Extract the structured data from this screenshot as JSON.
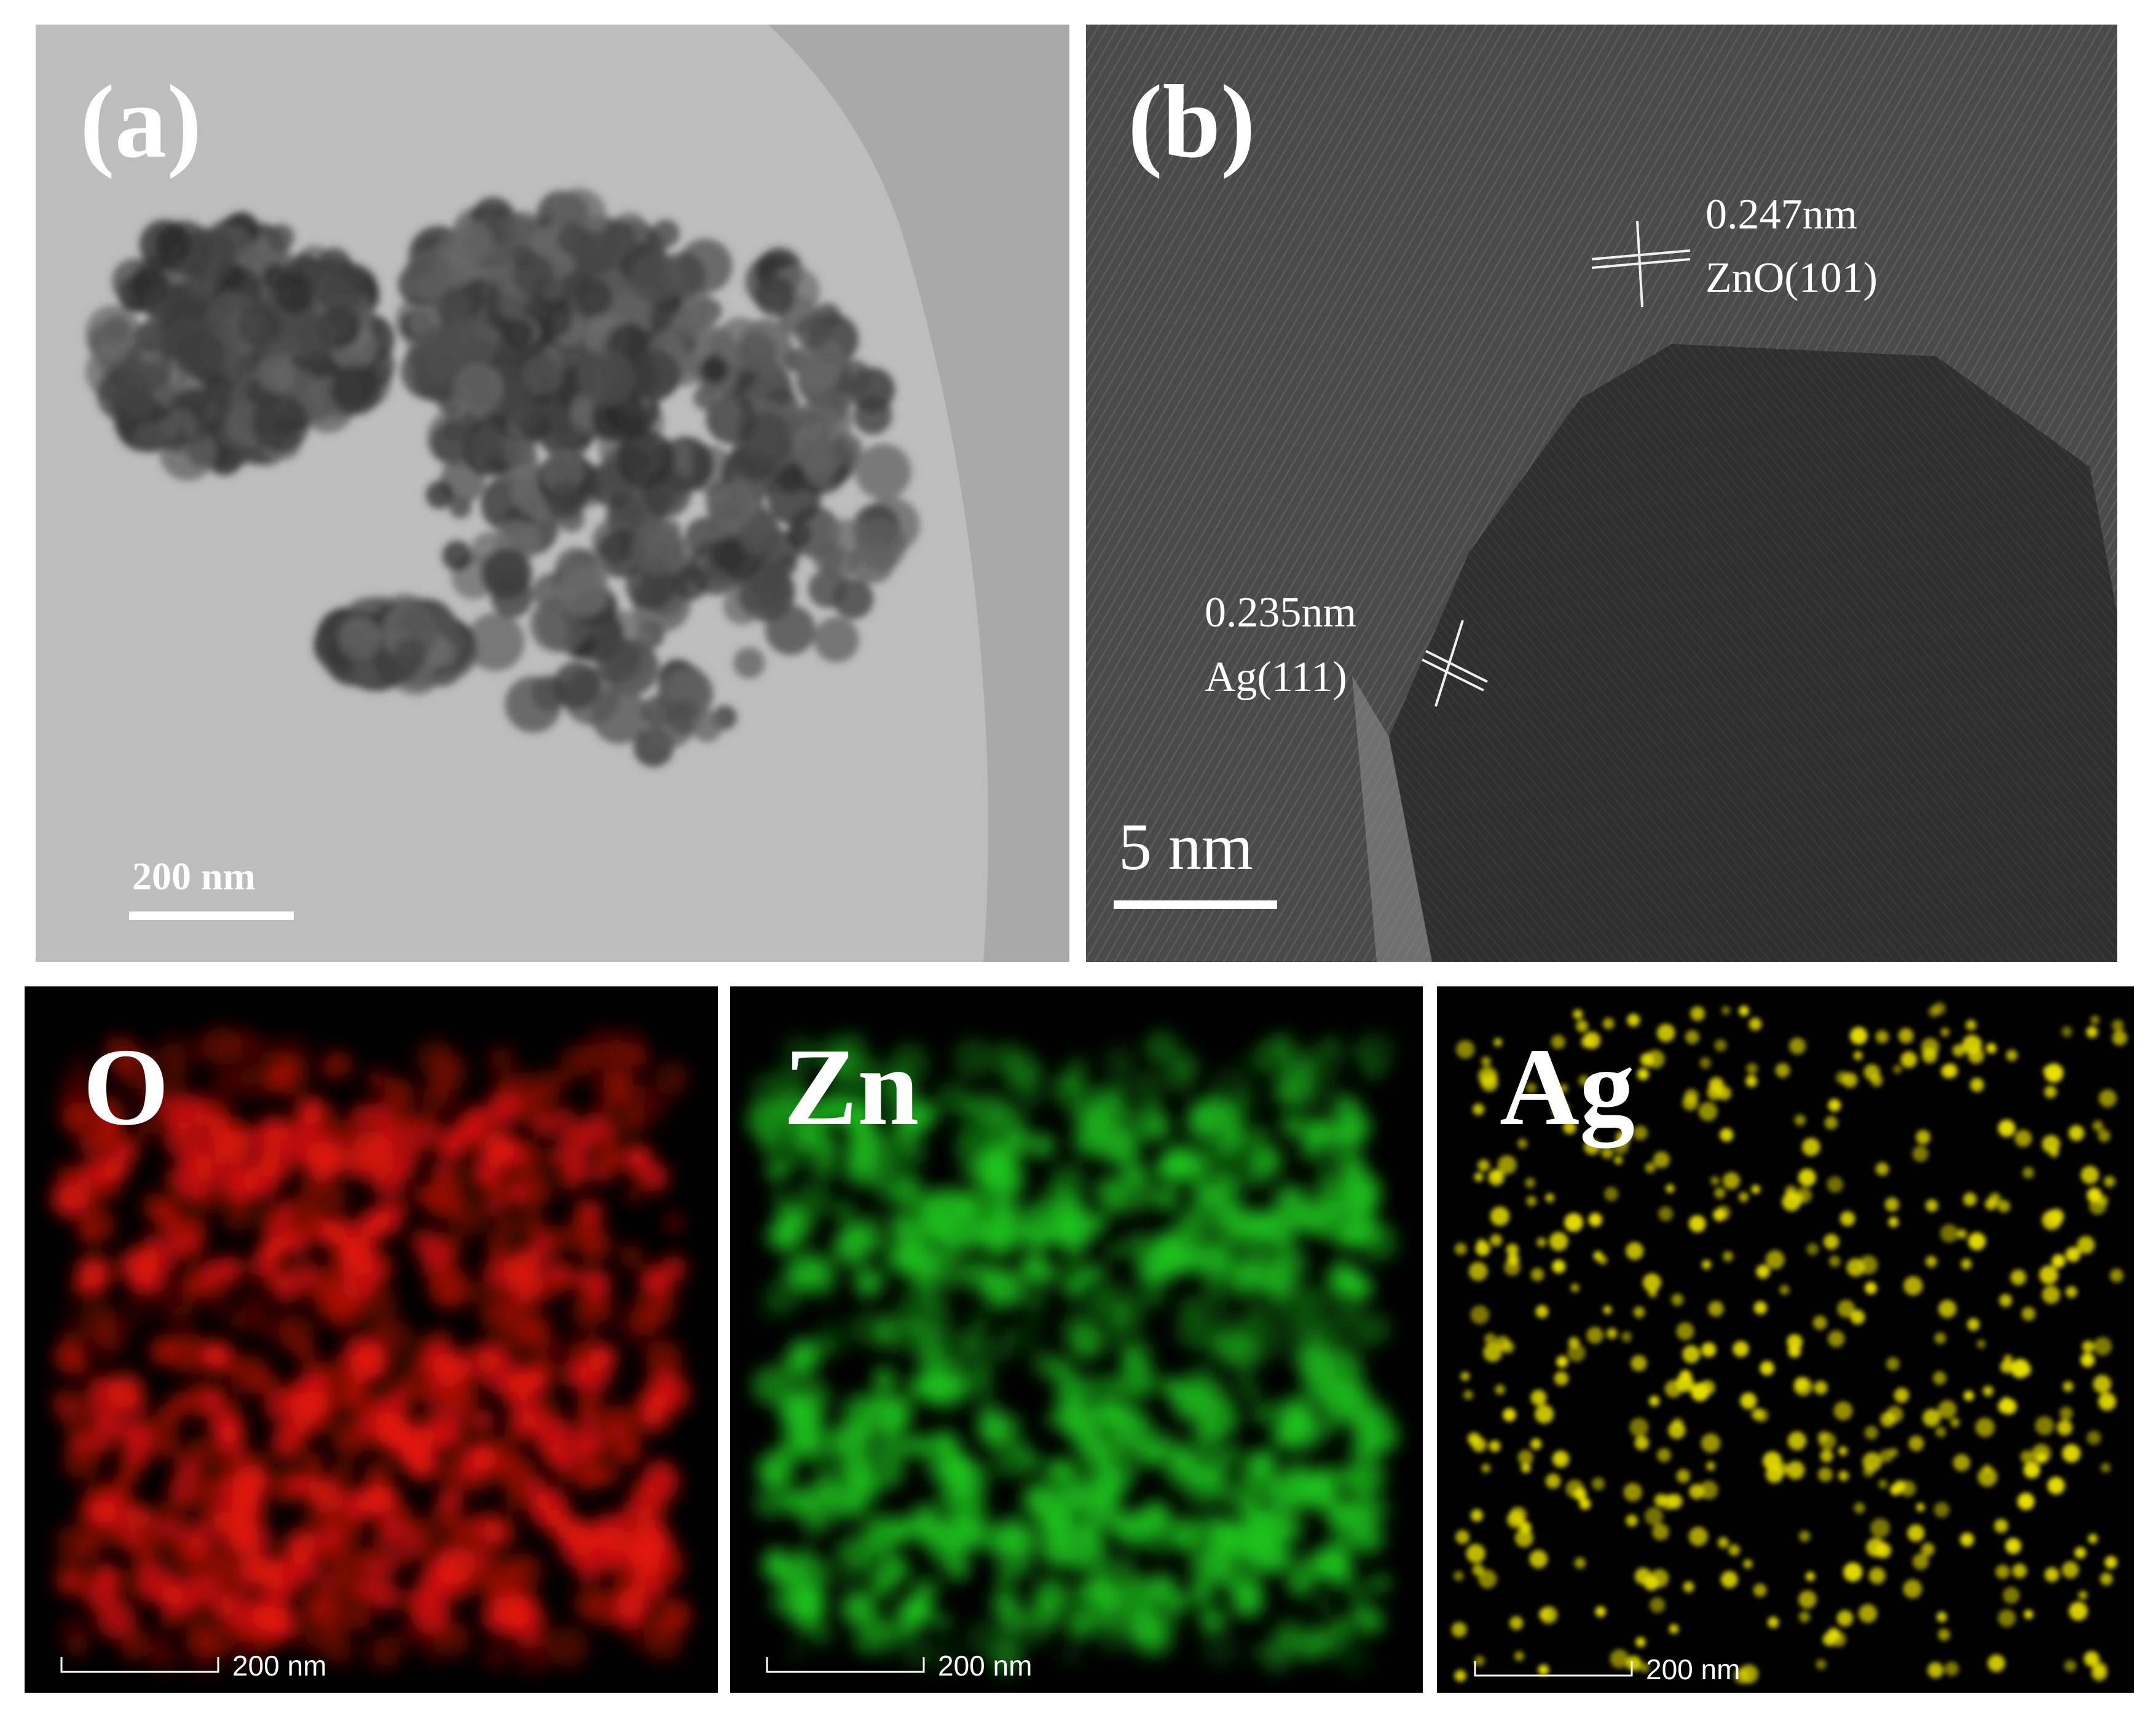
{
  "panels": [
    {
      "label": "(a)",
      "scale_bar": "200 nm"
    },
    {
      "label": "(b)",
      "scale_bar": "5 nm",
      "annotations": [
        {
          "spacing": "0.247nm",
          "plane": "ZnO(101)"
        },
        {
          "spacing": "0.235nm",
          "plane": "Ag(111)"
        }
      ]
    },
    {
      "label": "O",
      "scale_bar": "200 nm"
    },
    {
      "label": "Zn",
      "scale_bar": "200 nm"
    },
    {
      "label": "Ag",
      "scale_bar": "200 nm"
    }
  ]
}
